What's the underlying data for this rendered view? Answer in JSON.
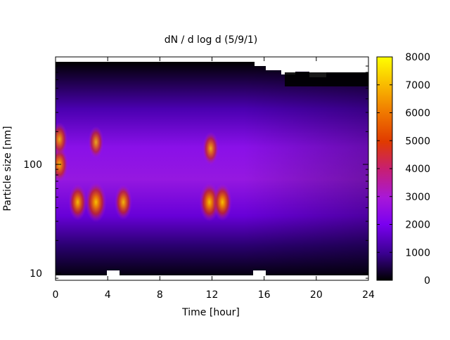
{
  "chart_data": {
    "type": "heatmap",
    "title": "dN / d log d (5/9/1)",
    "xlabel": "Time [hour]",
    "ylabel": "Particle size [nm]",
    "x_ticks": [
      0,
      4,
      8,
      12,
      16,
      20,
      24
    ],
    "y_ticks": [
      10,
      100
    ],
    "xlim": [
      0,
      24
    ],
    "ylim_nm": [
      9,
      850
    ],
    "y_scale": "log",
    "colorbar": {
      "ticks": [
        0,
        1000,
        2000,
        3000,
        4000,
        5000,
        6000,
        7000,
        8000
      ],
      "range": [
        0,
        8000
      ],
      "palette": [
        "#000000",
        "#3a0090",
        "#7a00f0",
        "#a818d8",
        "#c81f70",
        "#e03a00",
        "#f07800",
        "#f8b800",
        "#ffff00"
      ]
    },
    "background": {
      "description_values": [
        {
          "size_nm": 12,
          "value": 300
        },
        {
          "size_nm": 20,
          "value": 900
        },
        {
          "size_nm": 40,
          "value": 1900
        },
        {
          "size_nm": 100,
          "value": 2300
        },
        {
          "size_nm": 200,
          "value": 1800
        },
        {
          "size_nm": 400,
          "value": 900
        },
        {
          "size_nm": 700,
          "value": 300
        }
      ]
    },
    "hotspots": [
      {
        "time_h": 0.3,
        "size_nm": 100,
        "value": 5200
      },
      {
        "time_h": 0.3,
        "size_nm": 170,
        "value": 4600
      },
      {
        "time_h": 1.7,
        "size_nm": 45,
        "value": 5600
      },
      {
        "time_h": 3.1,
        "size_nm": 45,
        "value": 7200
      },
      {
        "time_h": 3.1,
        "size_nm": 160,
        "value": 4000
      },
      {
        "time_h": 5.2,
        "size_nm": 45,
        "value": 5200
      },
      {
        "time_h": 11.8,
        "size_nm": 45,
        "value": 6600
      },
      {
        "time_h": 11.9,
        "size_nm": 140,
        "value": 4500
      },
      {
        "time_h": 12.8,
        "size_nm": 45,
        "value": 6000
      }
    ]
  }
}
